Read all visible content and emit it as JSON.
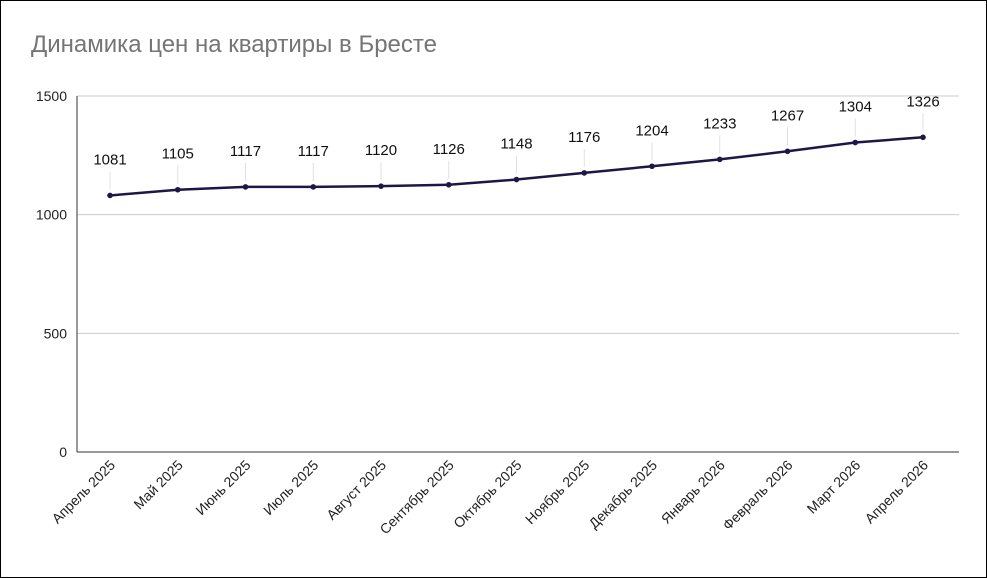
{
  "chart_data": {
    "type": "line",
    "title": "Динамика цен на квартиры в Бресте",
    "categories": [
      "Апрель 2025",
      "Май 2025",
      "Июнь 2025",
      "Июль 2025",
      "Август 2025",
      "Сентябрь 2025",
      "Октябрь 2025",
      "Ноябрь 2025",
      "Декабрь 2025",
      "Январь 2026",
      "Февраль 2026",
      "Март 2026",
      "Апрель 2026"
    ],
    "series": [
      {
        "values": [
          1081,
          1105,
          1117,
          1117,
          1120,
          1126,
          1148,
          1176,
          1204,
          1233,
          1267,
          1304,
          1326
        ]
      }
    ],
    "ylim": [
      0,
      1500
    ],
    "yticks": [
      0,
      500,
      1000,
      1500
    ],
    "xlabel": "",
    "ylabel": "",
    "grid": true,
    "data_labels": true,
    "line_color": "#1f1645",
    "grid_color": "#cccccc",
    "title_color": "#757575"
  }
}
